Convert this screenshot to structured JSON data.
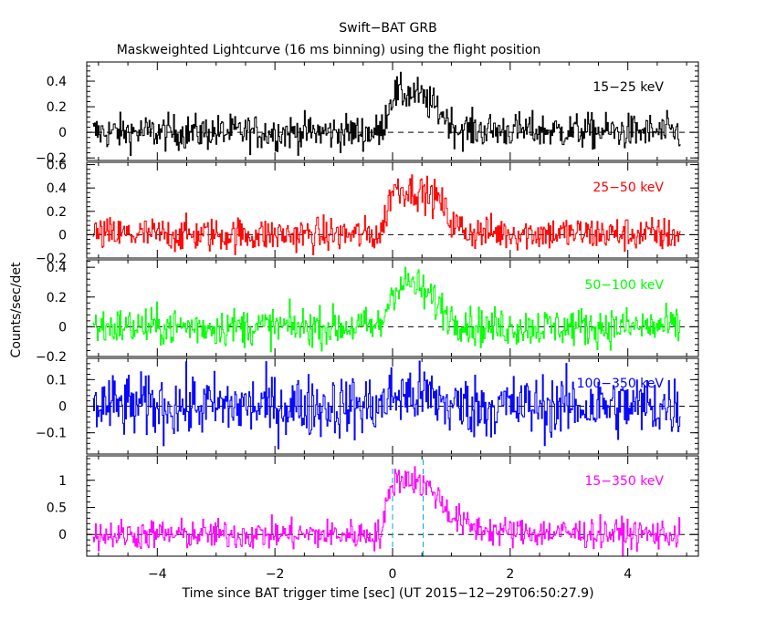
{
  "chart_data": {
    "type": "line",
    "title": "Swift−BAT GRB",
    "subtitle": "Maskweighted Lightcurve (16 ms binning) using the flight position",
    "xlabel": "Time since BAT trigger time [sec] (UT 2015−12−29T06:50:27.9)",
    "ylabel": "Counts/sec/det",
    "xlim": [
      -5.2,
      5.2
    ],
    "x_ticks": [
      -4,
      -2,
      0,
      2,
      4
    ],
    "x_tick_labels": [
      "−4",
      "−2",
      "0",
      "2",
      "4"
    ],
    "grid": false,
    "bin_width_sec": 0.016,
    "data_range": [
      -5.1,
      4.9
    ],
    "markers": [
      0,
      0.52
    ],
    "series": [
      {
        "name": "15−25 keV",
        "color": "#000000",
        "ylim": [
          -0.22,
          0.55
        ],
        "y_ticks": [
          -0.2,
          0,
          0.2,
          0.4
        ],
        "y_tick_labels": [
          "−0.2",
          "0",
          "0.2",
          "0.4"
        ],
        "noise": 0.07,
        "profile": [
          [
            -5.1,
            0.0
          ],
          [
            -0.2,
            0.0
          ],
          [
            0.0,
            0.3
          ],
          [
            0.4,
            0.3
          ],
          [
            0.8,
            0.17
          ],
          [
            1.1,
            0.02
          ],
          [
            4.9,
            0.0
          ]
        ]
      },
      {
        "name": "25−50 keV",
        "color": "#ff0000",
        "ylim": [
          -0.2,
          0.62
        ],
        "y_ticks": [
          -0.2,
          0,
          0.2,
          0.4,
          0.6
        ],
        "y_tick_labels": [
          "−0.2",
          "0",
          "0.2",
          "0.4",
          "0.6"
        ],
        "noise": 0.075,
        "profile": [
          [
            -5.1,
            0.0
          ],
          [
            -0.2,
            0.0
          ],
          [
            0.0,
            0.4
          ],
          [
            0.4,
            0.38
          ],
          [
            0.8,
            0.3
          ],
          [
            1.0,
            0.1
          ],
          [
            1.3,
            0.02
          ],
          [
            4.9,
            0.0
          ]
        ]
      },
      {
        "name": "50−100 keV",
        "color": "#00ff00",
        "ylim": [
          -0.2,
          0.45
        ],
        "y_ticks": [
          -0.2,
          0,
          0.2,
          0.4
        ],
        "y_tick_labels": [
          "−0.2",
          "0",
          "0.2",
          "0.4"
        ],
        "noise": 0.065,
        "profile": [
          [
            -5.1,
            0.0
          ],
          [
            -0.2,
            0.0
          ],
          [
            0.0,
            0.25
          ],
          [
            0.3,
            0.3
          ],
          [
            0.7,
            0.18
          ],
          [
            1.0,
            0.06
          ],
          [
            1.4,
            0.0
          ],
          [
            4.9,
            0.0
          ]
        ]
      },
      {
        "name": "100−350 keV",
        "color": "#0000ff",
        "ylim": [
          -0.18,
          0.18
        ],
        "y_ticks": [
          -0.1,
          0,
          0.1
        ],
        "y_tick_labels": [
          "−0.1",
          "0",
          "0.1"
        ],
        "noise": 0.06,
        "profile": [
          [
            -5.1,
            0.0
          ],
          [
            -0.2,
            0.0
          ],
          [
            0.0,
            0.04
          ],
          [
            0.6,
            0.04
          ],
          [
            1.0,
            0.0
          ],
          [
            4.9,
            0.0
          ]
        ]
      },
      {
        "name": "15−350 keV",
        "color": "#ff00ff",
        "ylim": [
          -0.4,
          1.45
        ],
        "y_ticks": [
          0,
          0.5,
          1
        ],
        "y_tick_labels": [
          "0",
          "0.5",
          "1"
        ],
        "noise": 0.14,
        "profile": [
          [
            -5.1,
            0.0
          ],
          [
            -0.2,
            0.0
          ],
          [
            0.0,
            1.0
          ],
          [
            0.3,
            1.05
          ],
          [
            0.7,
            0.8
          ],
          [
            1.0,
            0.35
          ],
          [
            1.3,
            0.15
          ],
          [
            1.8,
            0.05
          ],
          [
            4.9,
            0.0
          ]
        ]
      }
    ]
  }
}
